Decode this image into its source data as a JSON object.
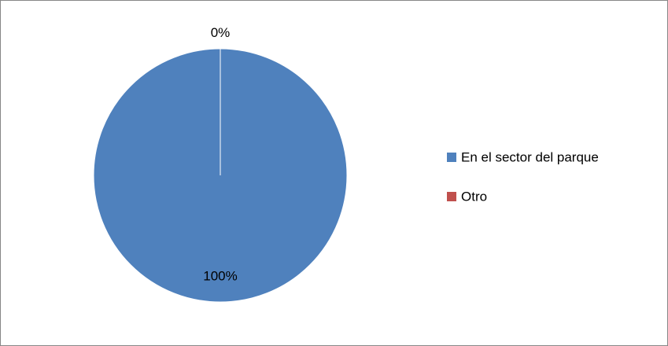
{
  "chart_data": {
    "type": "pie",
    "categories": [
      "En el sector del parque",
      "Otro"
    ],
    "values": [
      100,
      0
    ],
    "value_labels": [
      "100%",
      "0%"
    ],
    "colors": [
      "#4f81bd",
      "#c0504d"
    ],
    "legend": "right"
  }
}
